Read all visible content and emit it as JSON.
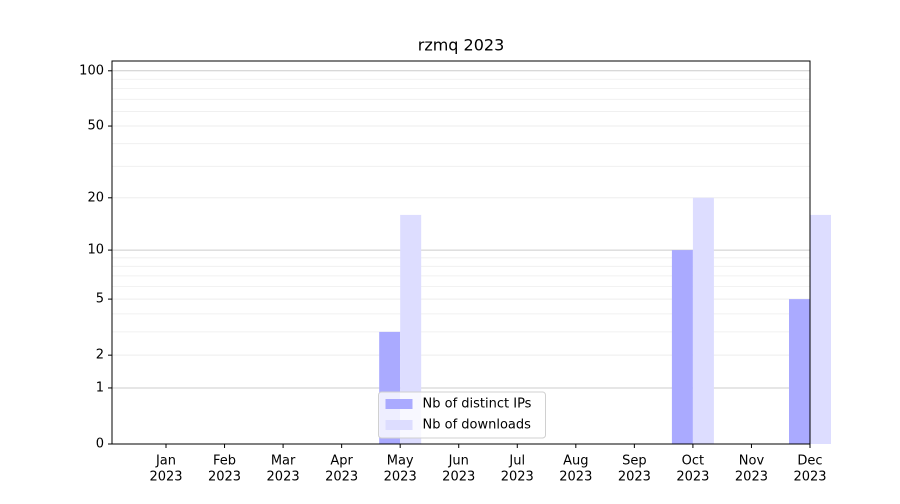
{
  "chart_data": {
    "type": "bar",
    "title": "rzmq 2023",
    "categories": [
      [
        "Jan",
        "2023"
      ],
      [
        "Feb",
        "2023"
      ],
      [
        "Mar",
        "2023"
      ],
      [
        "Apr",
        "2023"
      ],
      [
        "May",
        "2023"
      ],
      [
        "Jun",
        "2023"
      ],
      [
        "Jul",
        "2023"
      ],
      [
        "Aug",
        "2023"
      ],
      [
        "Sep",
        "2023"
      ],
      [
        "Oct",
        "2023"
      ],
      [
        "Nov",
        "2023"
      ],
      [
        "Dec",
        "2023"
      ]
    ],
    "series": [
      {
        "name": "Nb of distinct IPs",
        "color": "#aaaaff",
        "values": [
          0,
          0,
          0,
          0,
          3,
          0,
          0,
          0,
          0,
          10,
          0,
          5
        ]
      },
      {
        "name": "Nb of downloads",
        "color": "#ddddff",
        "values": [
          0,
          0,
          0,
          0,
          16,
          0,
          0,
          0,
          0,
          20,
          0,
          16
        ]
      }
    ],
    "yscale": "log1p",
    "ylim": [
      0,
      113
    ],
    "yticks": [
      0,
      1,
      2,
      5,
      10,
      20,
      50,
      100
    ],
    "minor_yticks": [
      3,
      4,
      6,
      7,
      8,
      9,
      30,
      40,
      60,
      70,
      80,
      90
    ],
    "grid": true,
    "legend": "lower center"
  }
}
